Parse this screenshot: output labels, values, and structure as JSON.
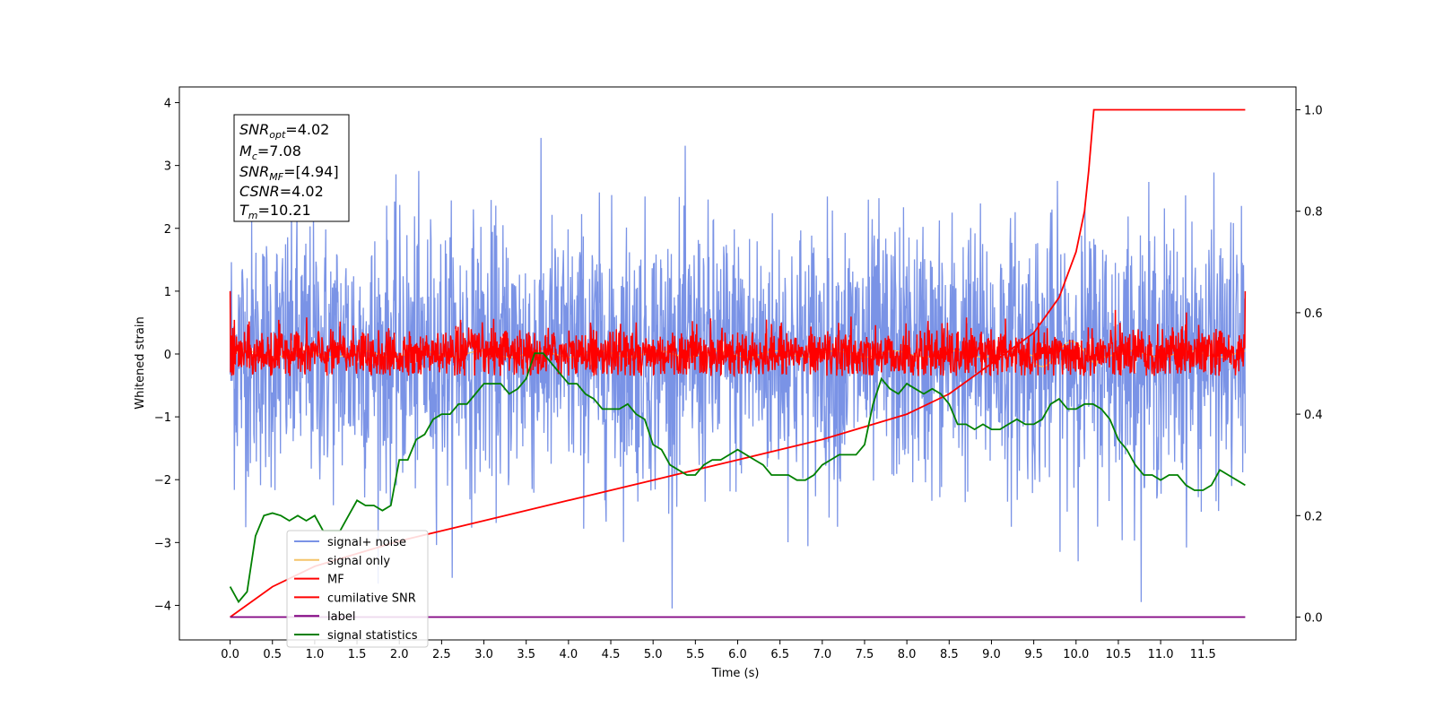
{
  "chart_data": {
    "type": "line",
    "xlabel": "Time (s)",
    "ylabel": "Whitened strain",
    "xlim": [
      -0.6,
      12.6
    ],
    "ylim": [
      -4.55,
      4.25
    ],
    "y2lim": [
      -0.045,
      1.045
    ],
    "x_ticks": [
      "0.0",
      "0.5",
      "1.0",
      "1.5",
      "2.0",
      "2.5",
      "3.0",
      "3.5",
      "4.0",
      "4.5",
      "5.0",
      "5.5",
      "6.0",
      "6.5",
      "7.0",
      "7.5",
      "8.0",
      "8.5",
      "9.0",
      "9.5",
      "10.0",
      "10.5",
      "11.0",
      "11.5"
    ],
    "y_ticks": [
      "4",
      "3",
      "2",
      "1",
      "0",
      "−1",
      "−2",
      "−3",
      "−4"
    ],
    "y2_ticks": [
      "1.0",
      "0.8",
      "0.6",
      "0.4",
      "0.2",
      "0.0"
    ],
    "annotation": {
      "snr_opt": {
        "sym": "SNR",
        "sub": "opt",
        "val": "=4.02"
      },
      "mc": {
        "sym": "M",
        "sub": "c",
        "val": "=7.08"
      },
      "snr_mf": {
        "sym": "SNR",
        "sub": "MF",
        "val": "=[4.94]"
      },
      "csnr": {
        "sym": "CSNR",
        "sub": "",
        "val": "=4.02"
      },
      "tm": {
        "sym": "T",
        "sub": "m",
        "val": "=10.21"
      }
    },
    "series": [
      {
        "name": "signal+ noise",
        "color": "#7a93e6",
        "axis": "left",
        "description_of_values": "noise band spanning roughly -3 to 3.8"
      },
      {
        "name": "signal only",
        "color": "#f5c46a",
        "axis": "left"
      },
      {
        "name": "MF",
        "color": "#ff0000",
        "axis": "left"
      },
      {
        "name": "cumilative SNR",
        "color": "#ff0000",
        "axis": "right",
        "x": [
          0.0,
          0.5,
          1.0,
          2.0,
          3.0,
          4.0,
          5.0,
          6.0,
          7.0,
          8.0,
          8.5,
          9.0,
          9.5,
          9.8,
          10.0,
          10.1,
          10.15,
          10.21,
          12.0
        ],
        "values": [
          0.0,
          0.06,
          0.1,
          0.15,
          0.19,
          0.23,
          0.27,
          0.31,
          0.35,
          0.4,
          0.44,
          0.5,
          0.56,
          0.63,
          0.72,
          0.8,
          0.88,
          1.0,
          1.0
        ]
      },
      {
        "name": "label",
        "color": "#800080",
        "axis": "right",
        "x": [
          0.0,
          12.0
        ],
        "values": [
          0.0,
          0.0
        ]
      },
      {
        "name": "signal statistics",
        "color": "#008000",
        "axis": "right",
        "x": [
          0.0,
          0.1,
          0.2,
          0.3,
          0.4,
          0.5,
          0.6,
          0.7,
          0.8,
          0.9,
          1.0,
          1.1,
          1.2,
          1.3,
          1.4,
          1.5,
          1.6,
          1.7,
          1.8,
          1.9,
          2.0,
          2.1,
          2.2,
          2.3,
          2.4,
          2.5,
          2.6,
          2.7,
          2.8,
          2.9,
          3.0,
          3.1,
          3.2,
          3.3,
          3.4,
          3.5,
          3.6,
          3.7,
          3.8,
          3.9,
          4.0,
          4.1,
          4.2,
          4.3,
          4.4,
          4.5,
          4.6,
          4.7,
          4.8,
          4.9,
          5.0,
          5.1,
          5.2,
          5.3,
          5.4,
          5.5,
          5.6,
          5.7,
          5.8,
          5.9,
          6.0,
          6.1,
          6.2,
          6.3,
          6.4,
          6.5,
          6.6,
          6.7,
          6.8,
          6.9,
          7.0,
          7.1,
          7.2,
          7.3,
          7.4,
          7.5,
          7.6,
          7.7,
          7.8,
          7.9,
          8.0,
          8.1,
          8.2,
          8.3,
          8.4,
          8.5,
          8.6,
          8.7,
          8.8,
          8.9,
          9.0,
          9.1,
          9.2,
          9.3,
          9.4,
          9.5,
          9.6,
          9.7,
          9.8,
          9.9,
          10.0,
          10.1,
          10.2,
          10.3,
          10.4,
          10.5,
          10.6,
          10.7,
          10.8,
          10.9,
          11.0,
          11.1,
          11.2,
          11.3,
          11.4,
          11.5,
          11.6,
          11.7,
          11.8,
          11.9,
          12.0
        ],
        "values": [
          0.06,
          0.03,
          0.05,
          0.16,
          0.2,
          0.205,
          0.2,
          0.19,
          0.2,
          0.19,
          0.2,
          0.17,
          0.17,
          0.17,
          0.2,
          0.23,
          0.22,
          0.22,
          0.21,
          0.22,
          0.31,
          0.31,
          0.35,
          0.36,
          0.39,
          0.4,
          0.4,
          0.42,
          0.42,
          0.44,
          0.46,
          0.46,
          0.46,
          0.44,
          0.45,
          0.47,
          0.52,
          0.52,
          0.5,
          0.48,
          0.46,
          0.46,
          0.44,
          0.43,
          0.41,
          0.41,
          0.41,
          0.42,
          0.4,
          0.39,
          0.34,
          0.33,
          0.3,
          0.29,
          0.28,
          0.28,
          0.3,
          0.31,
          0.31,
          0.32,
          0.33,
          0.32,
          0.31,
          0.3,
          0.28,
          0.28,
          0.28,
          0.27,
          0.27,
          0.28,
          0.3,
          0.31,
          0.32,
          0.32,
          0.32,
          0.34,
          0.42,
          0.47,
          0.45,
          0.44,
          0.46,
          0.45,
          0.44,
          0.45,
          0.44,
          0.42,
          0.38,
          0.38,
          0.37,
          0.38,
          0.37,
          0.37,
          0.38,
          0.39,
          0.38,
          0.38,
          0.39,
          0.42,
          0.43,
          0.41,
          0.41,
          0.42,
          0.42,
          0.41,
          0.39,
          0.35,
          0.33,
          0.3,
          0.28,
          0.28,
          0.27,
          0.28,
          0.28,
          0.26,
          0.25,
          0.25,
          0.26,
          0.29,
          0.28,
          0.27,
          0.26
        ]
      }
    ],
    "legend_position": "lower-left",
    "grid": false
  }
}
